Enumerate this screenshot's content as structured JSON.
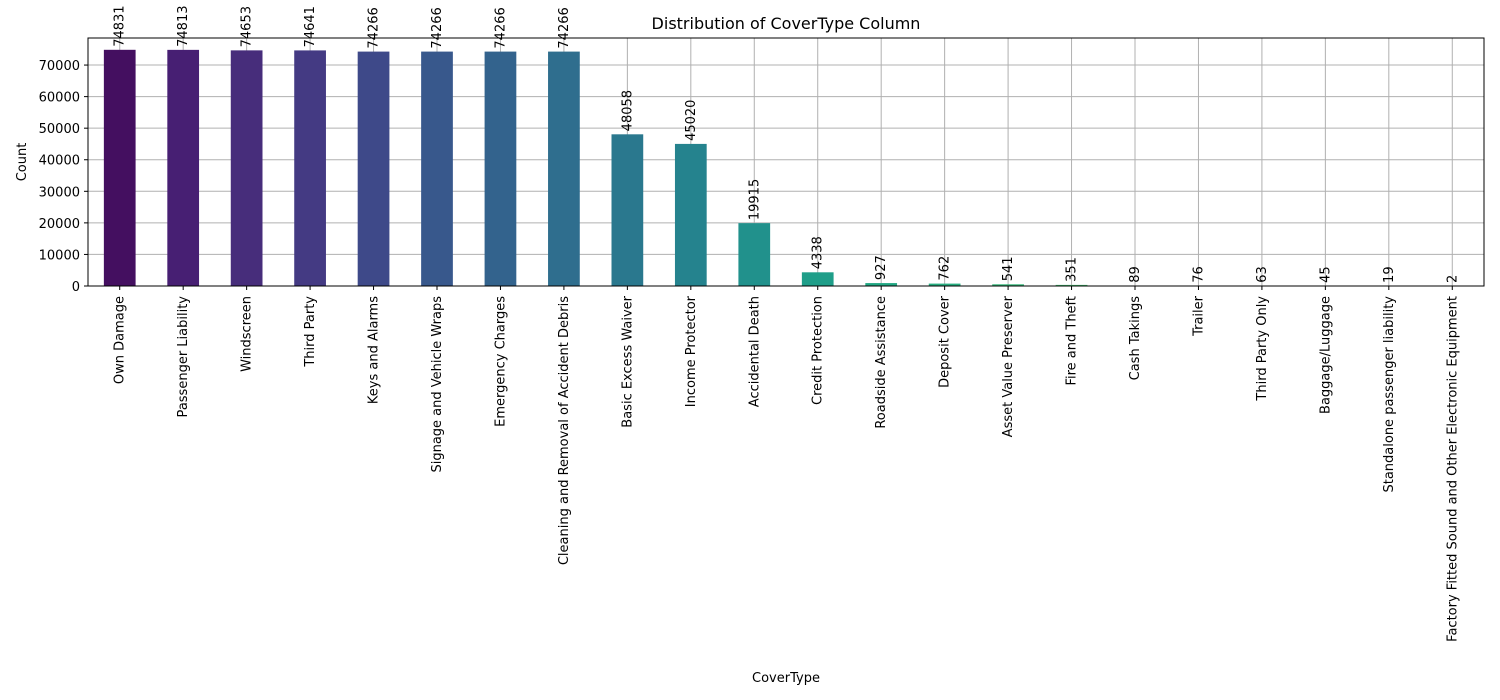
{
  "chart_data": {
    "type": "bar",
    "title": "Distribution of CoverType Column",
    "xlabel": "CoverType",
    "ylabel": "Count",
    "ylim": [
      0,
      78572
    ],
    "yticks": [
      0,
      10000,
      20000,
      30000,
      40000,
      50000,
      60000,
      70000
    ],
    "grid": true,
    "categories": [
      "Own Damage",
      "Passenger Liability",
      "Windscreen",
      "Third Party",
      "Keys and Alarms",
      "Signage and Vehicle Wraps",
      "Emergency Charges",
      "Cleaning and Removal of Accident Debris",
      "Basic Excess Waiver",
      "Income Protector",
      "Accidental Death",
      "Credit Protection",
      "Roadside Assistance",
      "Deposit Cover",
      "Asset Value Preserver",
      "Fire and Theft",
      "Cash Takings",
      "Trailer",
      "Third Party Only",
      "Baggage/Luggage",
      "Standalone passenger liability",
      "Factory Fitted Sound and Other Electronic Equipment"
    ],
    "values": [
      74831,
      74813,
      74653,
      74641,
      74266,
      74266,
      74266,
      74266,
      48058,
      45020,
      19915,
      4338,
      927,
      762,
      541,
      351,
      89,
      76,
      63,
      45,
      19,
      2
    ],
    "colors": [
      "#440f60",
      "#471f73",
      "#472d7b",
      "#443a83",
      "#3e4989",
      "#38588c",
      "#33638d",
      "#2f6e8e",
      "#2a788e",
      "#25838e",
      "#21918c",
      "#1f9e89",
      "#22a884",
      "#28ae80",
      "#35b779",
      "#44bf70",
      "#5ec962",
      "#73d056",
      "#90d743",
      "#addc30",
      "#c8e020",
      "#e3e418"
    ]
  }
}
